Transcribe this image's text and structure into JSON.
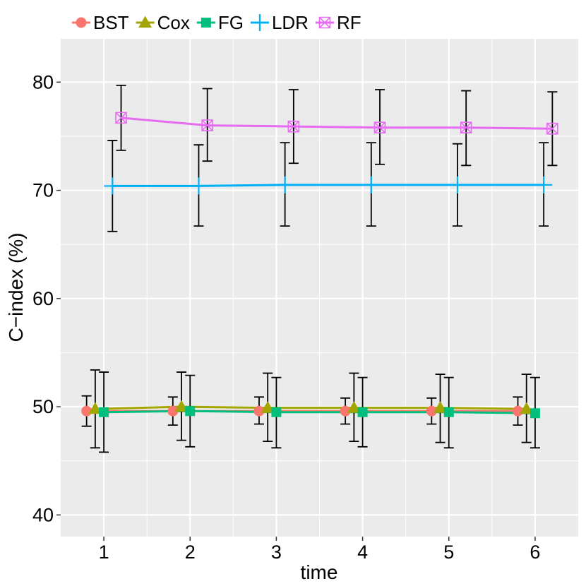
{
  "chart_data": {
    "type": "line",
    "title": "",
    "xlabel": "time",
    "ylabel": "C−index (%)",
    "x": [
      1,
      2,
      3,
      4,
      5,
      6
    ],
    "xlim": [
      0.5,
      6.5
    ],
    "ylim": [
      38,
      84
    ],
    "x_ticks": [
      "1",
      "2",
      "3",
      "4",
      "5",
      "6"
    ],
    "y_ticks": [
      "40",
      "50",
      "60",
      "70",
      "80"
    ],
    "grid": true,
    "legend_position": "top-left",
    "series": [
      {
        "name": "BST",
        "color": "#F8766D",
        "marker": "circle",
        "dodge": -0.2,
        "values": [
          49.6,
          49.6,
          49.6,
          49.6,
          49.6,
          49.6
        ],
        "lower": [
          48.2,
          48.3,
          48.4,
          48.4,
          48.4,
          48.3
        ],
        "upper": [
          51.0,
          50.9,
          50.9,
          50.8,
          50.8,
          50.9
        ]
      },
      {
        "name": "Cox",
        "color": "#A3A500",
        "marker": "triangle",
        "dodge": -0.1,
        "values": [
          49.8,
          50.0,
          49.9,
          49.9,
          49.9,
          49.8
        ],
        "lower": [
          46.2,
          46.9,
          46.8,
          46.8,
          46.7,
          46.7
        ],
        "upper": [
          53.4,
          53.2,
          53.1,
          53.1,
          53.0,
          53.0
        ]
      },
      {
        "name": "FG",
        "color": "#00BF7D",
        "marker": "square",
        "dodge": 0.0,
        "values": [
          49.5,
          49.6,
          49.5,
          49.5,
          49.5,
          49.4
        ],
        "lower": [
          45.8,
          46.3,
          46.2,
          46.3,
          46.2,
          46.2
        ],
        "upper": [
          53.2,
          52.9,
          52.7,
          52.7,
          52.7,
          52.7
        ]
      },
      {
        "name": "LDR",
        "color": "#00B0F6",
        "marker": "plus",
        "dodge": 0.1,
        "values": [
          70.4,
          70.4,
          70.5,
          70.5,
          70.5,
          70.5
        ],
        "lower": [
          66.2,
          66.7,
          66.7,
          66.7,
          66.7,
          66.7
        ],
        "upper": [
          74.6,
          74.2,
          74.4,
          74.4,
          74.3,
          74.4
        ]
      },
      {
        "name": "RF",
        "color": "#E76BF3",
        "marker": "boxcross",
        "dodge": 0.2,
        "values": [
          76.7,
          76.0,
          75.9,
          75.8,
          75.8,
          75.7
        ],
        "lower": [
          73.7,
          72.7,
          72.5,
          72.4,
          72.3,
          72.3
        ],
        "upper": [
          79.7,
          79.4,
          79.3,
          79.3,
          79.2,
          79.1
        ]
      }
    ]
  }
}
